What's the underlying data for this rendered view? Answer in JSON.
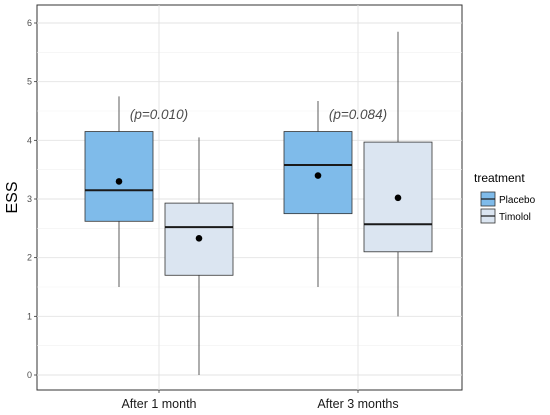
{
  "chart_data": {
    "type": "boxplot",
    "ylabel": "ESS",
    "xlabel": "",
    "ylim": [
      -0.1,
      6.3
    ],
    "yticks": [
      0,
      1,
      2,
      3,
      4,
      5,
      6
    ],
    "categories": [
      "After 1 month",
      "After 3 months"
    ],
    "grid": true,
    "legend": {
      "title": "treatment",
      "position": "right",
      "entries": [
        "Placebo",
        "Timolol"
      ]
    },
    "colors": {
      "Placebo": "#7fbbea",
      "Timolol": "#dbe5f1",
      "outline": "#333333"
    },
    "annotations": [
      "(p=0.010)",
      "(p=0.084)"
    ],
    "series": [
      {
        "name": "Placebo",
        "boxes": [
          {
            "min": 1.5,
            "q1": 2.62,
            "median": 3.15,
            "q3": 4.15,
            "max": 4.75,
            "mean": 3.3
          },
          {
            "min": 1.5,
            "q1": 2.75,
            "median": 3.58,
            "q3": 4.15,
            "max": 4.67,
            "mean": 3.4
          }
        ]
      },
      {
        "name": "Timolol",
        "boxes": [
          {
            "min": 0.0,
            "q1": 1.7,
            "median": 2.52,
            "q3": 2.93,
            "max": 4.05,
            "mean": 2.33
          },
          {
            "min": 1.0,
            "q1": 2.1,
            "median": 2.57,
            "q3": 3.97,
            "max": 5.85,
            "mean": 3.02
          }
        ]
      }
    ]
  }
}
